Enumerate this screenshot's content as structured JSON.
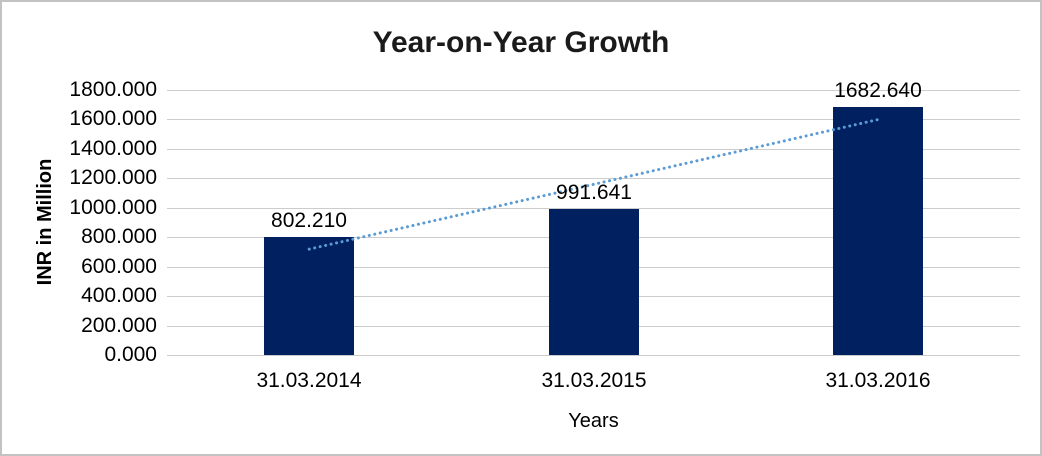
{
  "chart_data": {
    "type": "bar",
    "title": "Year-on-Year Growth",
    "categories": [
      "31.03.2014",
      "31.03.2015",
      "31.03.2016"
    ],
    "values": [
      802.21,
      991.641,
      1682.64
    ],
    "value_labels": [
      "802.210",
      "991.641",
      "1682.640"
    ],
    "xlabel": "Years",
    "ylabel": "INR in Million",
    "ylim": [
      0,
      1800
    ],
    "ytick_step": 200,
    "ytick_labels": [
      "0.000",
      "200.000",
      "400.000",
      "600.000",
      "800.000",
      "1000.000",
      "1200.000",
      "1400.000",
      "1600.000",
      "1800.000"
    ],
    "grid": true,
    "legend": "none",
    "trendline": {
      "type": "linear",
      "style": "dotted",
      "start_value": 719,
      "end_value": 1599
    },
    "colors": {
      "bar": "#002060",
      "trendline": "#5b9bd5",
      "gridline": "#cccccc",
      "text": "#000000",
      "title_text": "#1a1a1a",
      "frame_border": "#c3c3c3"
    }
  }
}
